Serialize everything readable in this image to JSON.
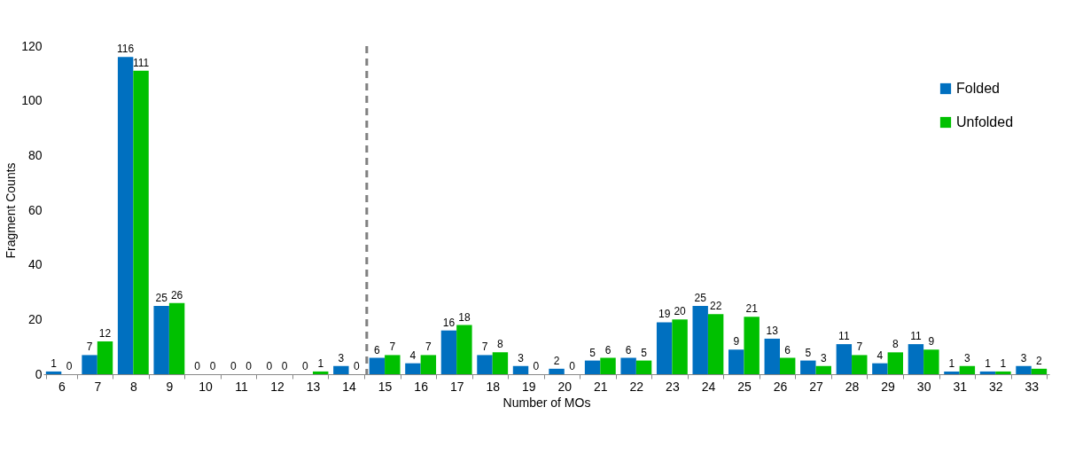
{
  "chart_data": {
    "type": "bar",
    "xlabel": "Number of MOs",
    "ylabel": "Fragment Counts",
    "categories": [
      "6",
      "7",
      "8",
      "9",
      "10",
      "11",
      "12",
      "13",
      "14",
      "15",
      "16",
      "17",
      "18",
      "19",
      "20",
      "21",
      "22",
      "23",
      "24",
      "25",
      "26",
      "27",
      "28",
      "29",
      "30",
      "31",
      "32",
      "33"
    ],
    "series": [
      {
        "name": "Folded",
        "color": "#0070c0",
        "values": [
          1,
          7,
          116,
          25,
          0,
          0,
          0,
          0,
          3,
          6,
          4,
          16,
          7,
          3,
          2,
          5,
          6,
          19,
          25,
          9,
          13,
          5,
          11,
          4,
          11,
          1,
          1,
          3
        ]
      },
      {
        "name": "Unfolded",
        "color": "#00c000",
        "values": [
          0,
          12,
          111,
          26,
          0,
          0,
          0,
          1,
          0,
          7,
          7,
          18,
          8,
          0,
          0,
          6,
          5,
          20,
          22,
          21,
          6,
          3,
          7,
          8,
          9,
          3,
          1,
          2
        ]
      }
    ],
    "ylim": [
      0,
      120
    ],
    "yticks": [
      0,
      20,
      40,
      60,
      80,
      100,
      120
    ],
    "grid": false,
    "legend": "top right",
    "data_labels": true
  }
}
